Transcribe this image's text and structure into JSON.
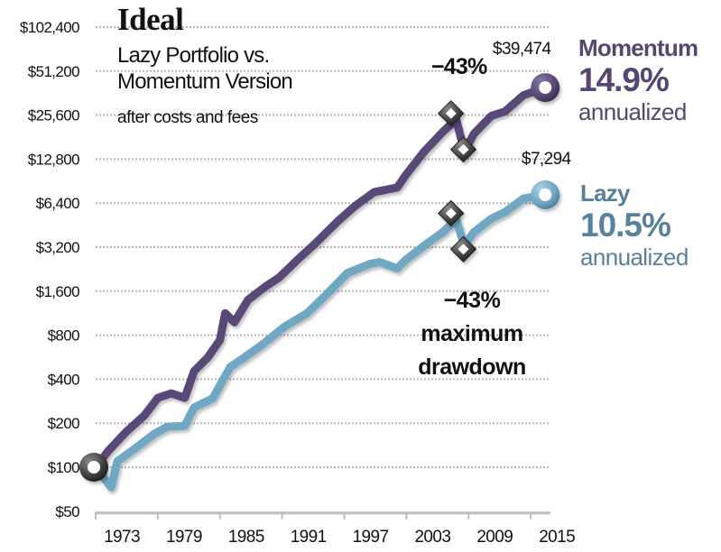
{
  "header": {
    "title": "Ideal",
    "subtitle_line1": "Lazy Portfolio vs.",
    "subtitle_line2": "Momentum Version",
    "note": "after costs and fees"
  },
  "labels": {
    "momentum_name": "Momentum",
    "momentum_rate": "14.9%",
    "momentum_sub": "annualized",
    "momentum_end_value": "$39,474",
    "lazy_name": "Lazy",
    "lazy_rate": "10.5%",
    "lazy_sub": "annualized",
    "lazy_end_value": "$7,294",
    "drawdown_top": "−43%",
    "drawdown_bottom_pct": "−43%",
    "drawdown_bottom_l1": "maximum",
    "drawdown_bottom_l2": "drawdown"
  },
  "colors": {
    "momentum": "#5a4a78",
    "momentum_text": "#574770",
    "lazy": "#6fa7c2",
    "lazy_text": "#5a819c",
    "marker_dark": "#3a3a3a",
    "grid": "#b5b5b5",
    "axis": "#bdbdbd"
  },
  "chart_data": {
    "type": "line",
    "title": "Ideal — Lazy Portfolio vs. Momentum Version (after costs and fees)",
    "xlabel": "",
    "ylabel": "",
    "yscale": "log2",
    "ylim": [
      50,
      102400
    ],
    "xlim": [
      1973,
      2016.5
    ],
    "y_ticks": [
      50,
      100,
      200,
      400,
      800,
      1600,
      3200,
      6400,
      12800,
      25600,
      51200,
      102400
    ],
    "y_tick_labels": [
      "$50",
      "$100",
      "$200",
      "$400",
      "$800",
      "$1,600",
      "$3,200",
      "$6,400",
      "$12,800",
      "$25,600",
      "$51,200",
      "$102,400"
    ],
    "x_ticks": [
      1973,
      1979,
      1985,
      1991,
      1997,
      2003,
      2009,
      2015
    ],
    "x_tick_labels": [
      "1973",
      "1979",
      "1985",
      "1991",
      "1997",
      "2003",
      "2009",
      "2015"
    ],
    "grid": true,
    "legend": "direct labels right",
    "start": {
      "x": 1973,
      "y": 100
    },
    "series": [
      {
        "name": "Momentum",
        "annualized": "14.9%",
        "end_value": 39474,
        "x": [
          1973,
          1974.2,
          1976.0,
          1977.7,
          1979.0,
          1980.3,
          1981.6,
          1982.5,
          1983.8,
          1985.0,
          1985.5,
          1986.4,
          1987.7,
          1989.4,
          1990.7,
          1992.5,
          1994.2,
          1996.4,
          1998.1,
          1999.9,
          2002.1,
          2003.0,
          2004.7,
          2006.5,
          2007.8,
          2008.6,
          2009.5,
          2011.2,
          2012.5,
          2014.3,
          2016.4
        ],
        "y": [
          100,
          129,
          176,
          226,
          298,
          320,
          298,
          454,
          561,
          743,
          1130,
          982,
          1395,
          1723,
          1980,
          2630,
          3390,
          4830,
          6160,
          7620,
          8180,
          10100,
          14380,
          19630,
          23940,
          14380,
          19030,
          25280,
          27100,
          34970,
          39474
        ]
      },
      {
        "name": "Lazy",
        "annualized": "10.5%",
        "end_value": 7294,
        "x": [
          1973,
          1974.5,
          1975.1,
          1976.9,
          1978.6,
          1979.9,
          1981.6,
          1982.5,
          1984.3,
          1986.0,
          1987.3,
          1989.1,
          1991.2,
          1993.4,
          1995.2,
          1997.3,
          1999.5,
          2000.4,
          2002.1,
          2003.0,
          2004.7,
          2006.5,
          2007.8,
          2008.6,
          2009.5,
          2011.2,
          2012.5,
          2014.3,
          2016.4
        ],
        "y": [
          100,
          73,
          110,
          136,
          168,
          189,
          192,
          256,
          295,
          485,
          560,
          690,
          910,
          1130,
          1500,
          2130,
          2460,
          2530,
          2290,
          2640,
          3270,
          4050,
          4950,
          3270,
          4050,
          5010,
          5550,
          6880,
          7294
        ]
      }
    ],
    "markers": {
      "start_value": 100,
      "momentum_drawdown": {
        "peak": {
          "x": 2007.3,
          "y": 26300
        },
        "trough": {
          "x": 2008.5,
          "y": 14900
        },
        "label": "-43%"
      },
      "lazy_drawdown": {
        "peak": {
          "x": 2007.3,
          "y": 5450
        },
        "trough": {
          "x": 2008.5,
          "y": 3100
        },
        "label": "-43% maximum drawdown"
      }
    }
  }
}
